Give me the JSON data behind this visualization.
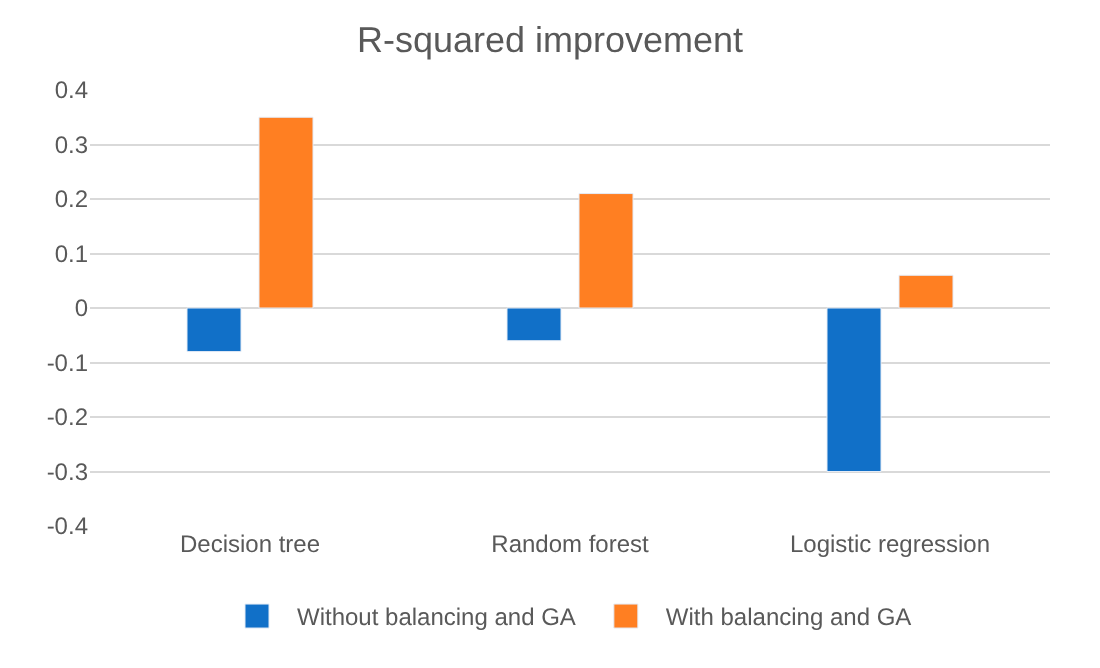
{
  "chart_data": {
    "type": "bar",
    "title": "R-squared improvement",
    "categories": [
      "Decision tree",
      "Random forest",
      "Logistic regression"
    ],
    "series": [
      {
        "name": "Without balancing and GA",
        "color": "#1170c8",
        "values": [
          -0.08,
          -0.06,
          -0.3
        ]
      },
      {
        "name": "With balancing and GA",
        "color": "#ff7f22",
        "values": [
          0.35,
          0.21,
          0.06
        ]
      }
    ],
    "ylim": [
      -0.4,
      0.4
    ],
    "yticks": [
      -0.4,
      -0.3,
      -0.2,
      -0.1,
      0,
      0.1,
      0.2,
      0.3,
      0.4
    ],
    "grid": "y",
    "legend": "bottom"
  }
}
